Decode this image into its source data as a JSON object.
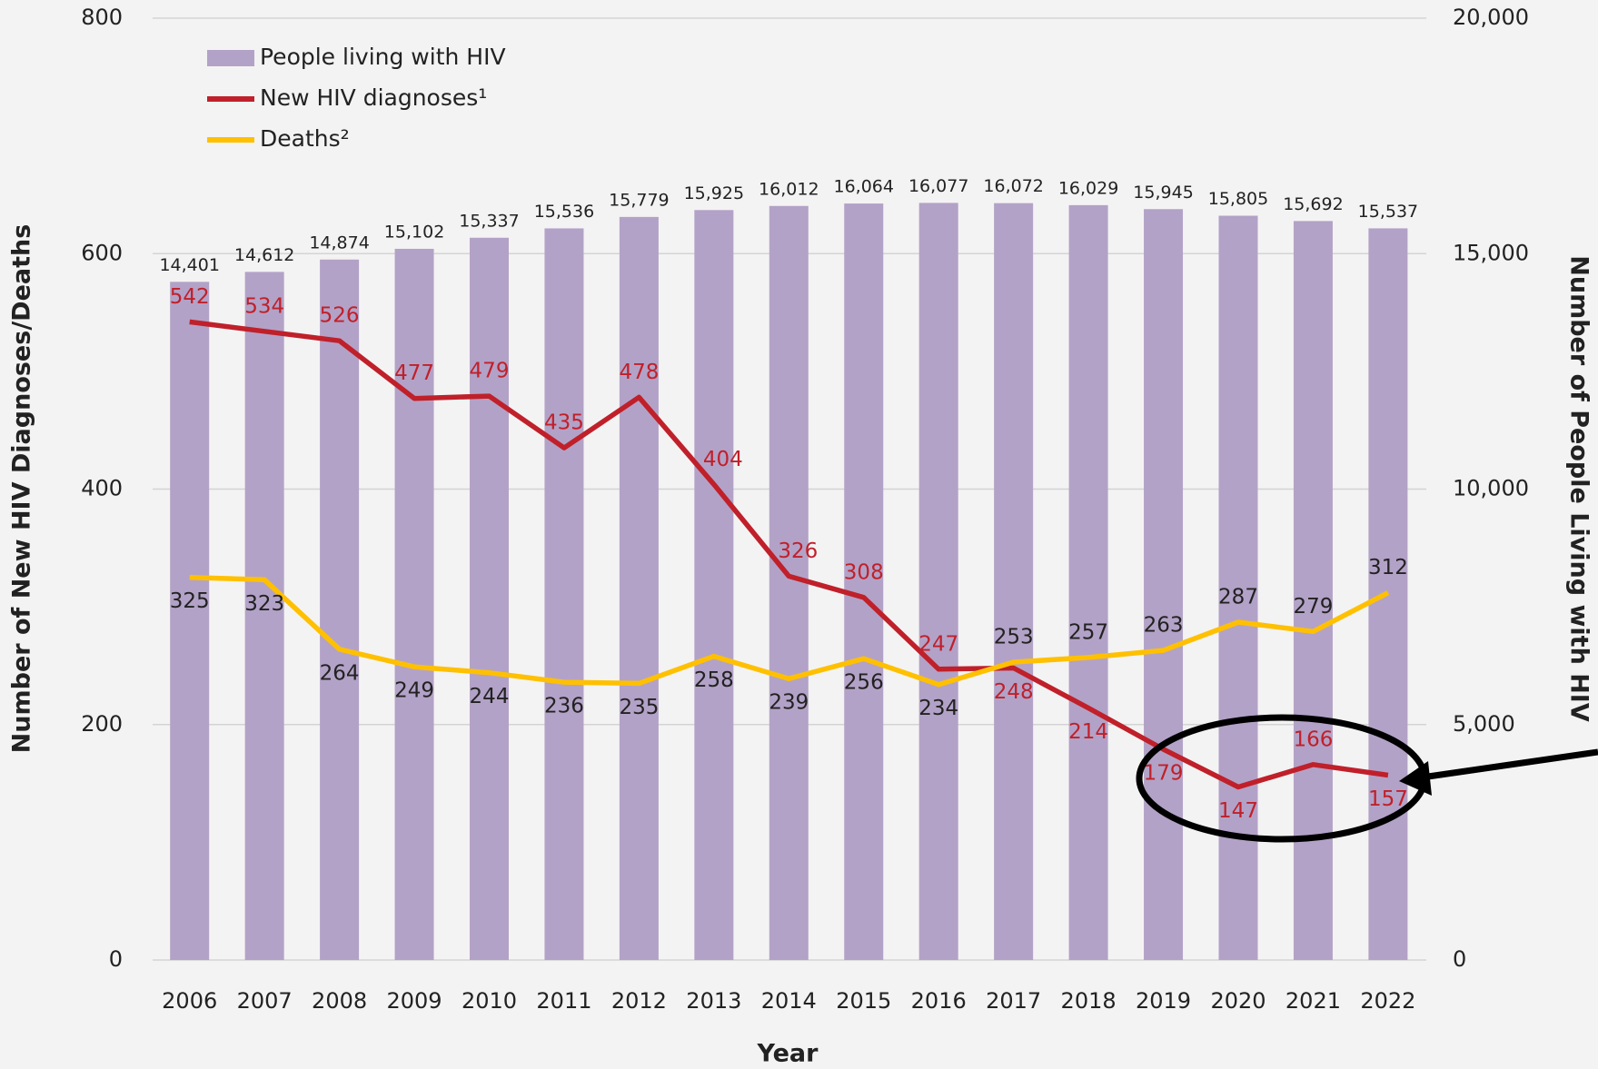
{
  "chart_data": {
    "type": "bar-line",
    "categories": [
      "2006",
      "2007",
      "2008",
      "2009",
      "2010",
      "2011",
      "2012",
      "2013",
      "2014",
      "2015",
      "2016",
      "2017",
      "2018",
      "2019",
      "2020",
      "2021",
      "2022"
    ],
    "series": [
      {
        "name": "People living with HIV",
        "type": "bar",
        "axis": "y2",
        "color": "#b3a2c7",
        "values": [
          14401,
          14612,
          14874,
          15102,
          15337,
          15536,
          15779,
          15925,
          16012,
          16064,
          16077,
          16072,
          16029,
          15945,
          15805,
          15692,
          15537
        ],
        "value_labels": [
          "14,401",
          "14,612",
          "14,874",
          "15,102",
          "15,337",
          "15,536",
          "15,779",
          "15,925",
          "16,012",
          "16,064",
          "16,077",
          "16,072",
          "16,029",
          "15,945",
          "15,805",
          "15,692",
          "15,537"
        ]
      },
      {
        "name": "New HIV diagnoses¹",
        "type": "line",
        "color": "#c0202a",
        "values": [
          542,
          534,
          526,
          477,
          479,
          435,
          478,
          404,
          326,
          308,
          247,
          248,
          214,
          179,
          147,
          166,
          157
        ]
      },
      {
        "name": "Deaths²",
        "type": "line",
        "color": "#ffc000",
        "values": [
          325,
          323,
          264,
          249,
          244,
          236,
          235,
          258,
          239,
          256,
          234,
          253,
          257,
          263,
          287,
          279,
          312
        ]
      }
    ],
    "y_label": "Number of New HIV Diagnoses/Deaths",
    "y2_label": "Number of People Living with HIV",
    "x_label": "Year",
    "ylim": [
      0,
      800
    ],
    "yticks": [
      0,
      200,
      400,
      600,
      800
    ],
    "y2lim": [
      0,
      20000
    ],
    "y2ticks": [
      0,
      {
        "value": 5000,
        "label": "5,000"
      },
      {
        "value": 10000,
        "label": "10,000"
      },
      {
        "value": 15000,
        "label": "15,000"
      },
      {
        "value": 20000,
        "label": "20,000"
      }
    ],
    "grid": true,
    "legend": "upper left"
  }
}
